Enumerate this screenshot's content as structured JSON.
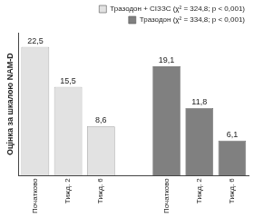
{
  "chart_data": {
    "type": "bar",
    "y_label": "Оцінка за шкалою NAM-D",
    "categories": [
      "Початково",
      "Тижд. 2",
      "Тижд. 6",
      null,
      "Початково",
      "Тижд. 2",
      "Тижд. 6"
    ],
    "series": [
      {
        "name": "Тразодон + СІЗЗС (χ² = 324,8; p < 0,001)",
        "color": "#e2e2e2",
        "values": [
          22.5,
          15.5,
          8.6,
          null,
          null,
          null,
          null
        ],
        "value_labels": [
          "22,5",
          "15,5",
          "8,6",
          null,
          null,
          null,
          null
        ]
      },
      {
        "name": "Тразодон (χ² = 334,8; p < 0,001)",
        "color": "#808080",
        "values": [
          null,
          null,
          null,
          null,
          19.1,
          11.8,
          6.1
        ],
        "value_labels": [
          null,
          null,
          null,
          null,
          "19,1",
          "11,8",
          "6,1"
        ]
      }
    ],
    "ylim": [
      0,
      25
    ],
    "grid": false,
    "legend": "top-right",
    "data_labels": true,
    "tick_labels": "x"
  }
}
